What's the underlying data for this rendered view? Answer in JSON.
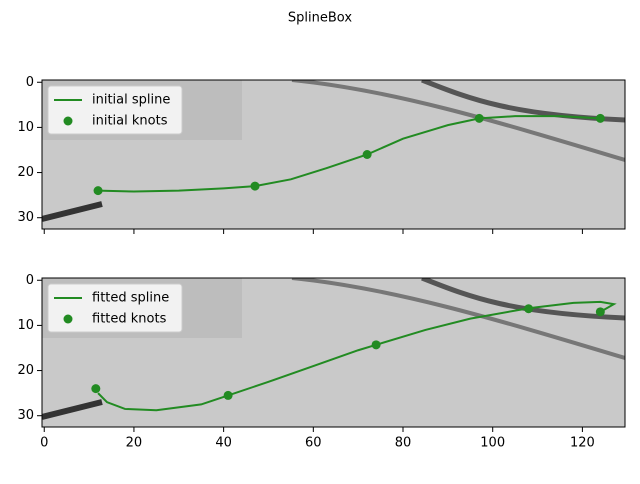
{
  "title": "SplineBox",
  "chart_data": [
    {
      "type": "line",
      "xlim": [
        -0.5,
        129.5
      ],
      "ylim": [
        32.5,
        -0.5
      ],
      "xticks": [
        0,
        20,
        40,
        60,
        80,
        100,
        120
      ],
      "yticks": [
        0,
        10,
        20,
        30
      ],
      "show_xtick_labels": false,
      "legend": "upper left",
      "series": [
        {
          "name": "initial spline",
          "type": "line",
          "color": "#228b22",
          "x": [
            12,
            20,
            30,
            40,
            47,
            55,
            63,
            72,
            80,
            90,
            97,
            105,
            115,
            124
          ],
          "values": [
            24,
            24.2,
            24,
            23.5,
            23,
            21.5,
            19,
            16,
            12.5,
            9.5,
            8,
            7.5,
            7.5,
            8
          ]
        },
        {
          "name": "initial knots",
          "type": "scatter",
          "color": "#228b22",
          "x": [
            12,
            47,
            72,
            97,
            124
          ],
          "values": [
            24,
            23,
            16,
            8,
            8
          ]
        }
      ]
    },
    {
      "type": "line",
      "xlim": [
        -0.5,
        129.5
      ],
      "ylim": [
        32.5,
        -0.5
      ],
      "xticks": [
        0,
        20,
        40,
        60,
        80,
        100,
        120
      ],
      "yticks": [
        0,
        10,
        20,
        30
      ],
      "show_xtick_labels": true,
      "legend": "upper left",
      "series": [
        {
          "name": "fitted spline",
          "type": "line",
          "color": "#228b22",
          "x": [
            12,
            14,
            18,
            25,
            35,
            41,
            50,
            60,
            70,
            74,
            85,
            95,
            108,
            118,
            124,
            127,
            124
          ],
          "values": [
            25,
            27,
            28.5,
            28.8,
            27.5,
            25.5,
            22.5,
            19,
            15.5,
            14.3,
            11,
            8.5,
            6.2,
            5,
            4.8,
            5.3,
            7
          ]
        },
        {
          "name": "fitted knots",
          "type": "scatter",
          "color": "#228b22",
          "x": [
            11.5,
            41,
            74,
            108,
            124
          ],
          "values": [
            24,
            25.5,
            14.3,
            6.3,
            7
          ]
        }
      ]
    }
  ]
}
